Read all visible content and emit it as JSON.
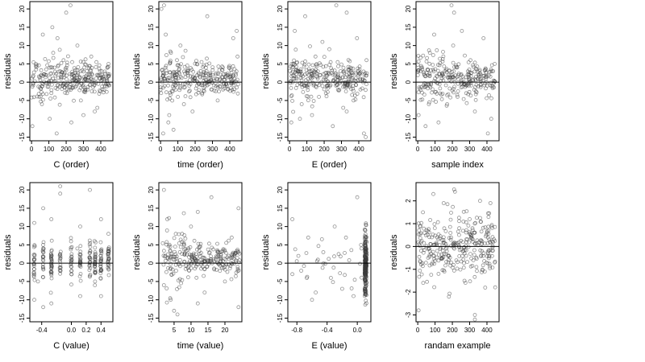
{
  "chart_data": [
    {
      "type": "scatter",
      "xlabel": "C (order)",
      "ylabel": "residuals",
      "xlim": [
        -10,
        470
      ],
      "ylim": [
        -16,
        22
      ],
      "xticks": [
        0,
        100,
        200,
        300,
        400
      ],
      "yticks": [
        -15,
        -10,
        -5,
        0,
        5,
        10,
        15,
        20
      ],
      "hline": 0,
      "pattern": "order",
      "x": [
        5,
        25,
        45,
        65,
        85,
        105,
        125,
        145,
        165,
        185,
        205,
        225,
        245,
        265,
        285,
        305,
        325,
        345,
        365,
        385,
        405,
        425,
        445,
        60,
        120,
        200,
        230,
        150,
        300,
        380
      ],
      "y": [
        -12,
        5,
        -4,
        13,
        2,
        -10,
        8,
        -14,
        3,
        6,
        -3,
        21,
        1,
        10,
        -5,
        4,
        -2,
        7,
        -8,
        2,
        3,
        -1,
        5,
        -6,
        15,
        19,
        -11,
        12,
        -9,
        -7
      ]
    },
    {
      "type": "scatter",
      "xlabel": "time (order)",
      "ylabel": "residuals",
      "xlim": [
        -10,
        470
      ],
      "ylim": [
        -16,
        22
      ],
      "xticks": [
        0,
        100,
        200,
        300,
        400
      ],
      "yticks": [
        -15,
        -10,
        -5,
        0,
        5,
        10,
        15,
        20
      ],
      "hline": 0,
      "pattern": "order",
      "x": [
        5,
        15,
        30,
        45,
        60,
        75,
        95,
        115,
        135,
        160,
        185,
        210,
        240,
        270,
        300,
        330,
        360,
        390,
        420,
        445,
        20,
        50,
        280,
        440,
        100
      ],
      "y": [
        20,
        -14,
        13,
        -11,
        8,
        -13,
        6,
        10,
        -6,
        3,
        -8,
        5,
        -3,
        18,
        2,
        -5,
        4,
        -2,
        12,
        7,
        21,
        -9,
        1,
        14,
        -4
      ]
    },
    {
      "type": "scatter",
      "xlabel": "E (order)",
      "ylabel": "residuals",
      "xlim": [
        -10,
        470
      ],
      "ylim": [
        -16,
        22
      ],
      "xticks": [
        0,
        100,
        200,
        300,
        400
      ],
      "yticks": [
        -15,
        -10,
        -5,
        0,
        5,
        10,
        15,
        20
      ],
      "hline": 0,
      "pattern": "order",
      "x": [
        10,
        30,
        50,
        70,
        90,
        110,
        130,
        150,
        170,
        190,
        210,
        230,
        250,
        270,
        290,
        310,
        330,
        350,
        370,
        390,
        410,
        430,
        445,
        60,
        330,
        440
      ],
      "y": [
        -11,
        14,
        3,
        -6,
        18,
        2,
        -9,
        7,
        -4,
        11,
        -3,
        9,
        -12,
        21,
        1,
        -7,
        19,
        4,
        -5,
        12,
        -2,
        -14,
        6,
        -10,
        -8,
        -15
      ]
    },
    {
      "type": "scatter",
      "xlabel": "sample index",
      "ylabel": "residuals",
      "xlim": [
        -10,
        470
      ],
      "ylim": [
        -16,
        22
      ],
      "xticks": [
        0,
        100,
        200,
        300,
        400
      ],
      "yticks": [
        -15,
        -10,
        -5,
        0,
        5,
        10,
        15,
        20
      ],
      "hline": 0,
      "pattern": "order",
      "x": [
        5,
        25,
        45,
        70,
        95,
        120,
        145,
        170,
        195,
        205,
        230,
        255,
        280,
        305,
        330,
        355,
        380,
        405,
        425,
        445,
        100,
        210
      ],
      "y": [
        -9,
        4,
        -12,
        8,
        13,
        -11,
        2,
        -6,
        21,
        10,
        -4,
        14,
        -3,
        6,
        -8,
        2,
        12,
        -14,
        -10,
        5,
        1,
        19
      ]
    },
    {
      "type": "scatter",
      "xlabel": "C (value)",
      "ylabel": "residuals",
      "xlim": [
        -0.56,
        0.56
      ],
      "ylim": [
        -16,
        22
      ],
      "xticks": [
        -0.4,
        0.0,
        0.2,
        0.4
      ],
      "xtick_labels": [
        "-0.4",
        "0.0",
        "0.2",
        "0.4"
      ],
      "yticks": [
        -15,
        -10,
        -5,
        0,
        5,
        10,
        15,
        20
      ],
      "hline": 0,
      "pattern": "columns",
      "columns": [
        -0.5,
        -0.38,
        -0.27,
        -0.15,
        0.0,
        0.12,
        0.25,
        0.32,
        0.4,
        0.5
      ],
      "x": [
        -0.5,
        -0.5,
        -0.38,
        -0.38,
        -0.27,
        -0.27,
        -0.15,
        -0.15,
        0.0,
        0.12,
        0.12,
        0.25,
        0.32,
        0.4,
        0.4,
        0.5,
        -0.45,
        0.08
      ],
      "y": [
        11,
        -10,
        15,
        -12,
        12,
        -11,
        21,
        19,
        -3,
        10,
        -9,
        20,
        -5,
        12,
        -9,
        8,
        -5,
        4
      ]
    },
    {
      "type": "scatter",
      "xlabel": "time (value)",
      "ylabel": "residuals",
      "xlim": [
        0.5,
        25
      ],
      "ylim": [
        -16,
        22
      ],
      "xticks": [
        5,
        10,
        15,
        20
      ],
      "yticks": [
        -15,
        -10,
        -5,
        0,
        5,
        10,
        15,
        20
      ],
      "hline": 0,
      "pattern": "time",
      "x": [
        2,
        3,
        4,
        5,
        5.5,
        6,
        8,
        10,
        12,
        14,
        16,
        18,
        20,
        22,
        24,
        24,
        2,
        12
      ],
      "y": [
        20,
        12,
        -10,
        -13,
        8,
        -14,
        5,
        10,
        14,
        -8,
        18,
        3,
        -5,
        7,
        15,
        -12,
        -6,
        -11
      ]
    },
    {
      "type": "scatter",
      "xlabel": "E (value)",
      "ylabel": "residuals",
      "xlim": [
        -0.92,
        0.18
      ],
      "ylim": [
        -16,
        22
      ],
      "xticks": [
        -0.8,
        -0.4,
        0.0
      ],
      "xtick_labels": [
        "-0.8",
        "-0.4",
        "0.0"
      ],
      "yticks": [
        -15,
        -10,
        -5,
        0,
        5,
        10,
        15,
        20
      ],
      "hline": 0,
      "pattern": "E",
      "x": [
        -0.86,
        -0.86,
        -0.78,
        -0.65,
        -0.6,
        -0.55,
        -0.45,
        -0.35,
        -0.3,
        -0.2,
        -0.15,
        -0.05,
        0.0,
        0.05
      ],
      "y": [
        12,
        -3,
        2,
        7,
        -10,
        -8,
        3,
        -4,
        10,
        -7,
        7,
        -9,
        18,
        5
      ]
    },
    {
      "type": "scatter",
      "xlabel": "randam example",
      "ylabel": "residuals",
      "xlim": [
        -10,
        470
      ],
      "ylim": [
        -3.3,
        2.8
      ],
      "xticks": [
        0,
        100,
        200,
        300,
        400
      ],
      "yticks": [
        -3,
        -2,
        -1,
        0,
        1,
        2
      ],
      "hline": 0,
      "pattern": "random",
      "x": [
        5,
        30,
        60,
        90,
        120,
        150,
        180,
        210,
        240,
        270,
        300,
        330,
        360,
        390,
        420,
        445,
        215,
        330
      ],
      "y": [
        -2.8,
        1.5,
        -0.5,
        2.3,
        -1.2,
        1.9,
        -2.2,
        2.5,
        0.8,
        -1.5,
        1.2,
        -3.0,
        2.0,
        -1.8,
        1.9,
        -0.7,
        2.4,
        -3.2
      ]
    }
  ]
}
